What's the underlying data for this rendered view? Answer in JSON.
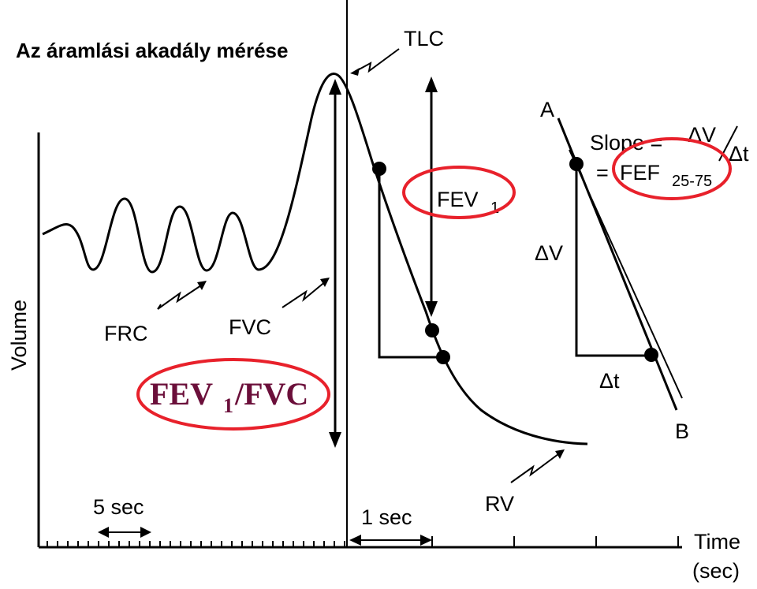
{
  "title": "Az áramlási akadály mérése",
  "labels": {
    "tlc": "TLC",
    "frc": "FRC",
    "fvc": "FVC",
    "rv": "RV",
    "fev": "FEV",
    "fev_sub": "1",
    "ratio_fev": "FEV",
    "ratio_sub": "1",
    "ratio_fvc": "/FVC",
    "slope": "Slope =",
    "delta_v_num": "ΔV",
    "delta_t_den": "Δt",
    "equals": "=",
    "fef": "FEF",
    "fef_sub": "25-75",
    "delta_v": "ΔV",
    "delta_t": "Δt",
    "point_a": "A",
    "point_b": "B",
    "five_sec": "5 sec",
    "one_sec": "1 sec",
    "time_axis": "Time",
    "time_unit": "(sec)",
    "volume_axis": "Volume"
  },
  "colors": {
    "highlight": "#e8212b",
    "ratio_text": "#6b0f3a",
    "line": "#000000"
  }
}
